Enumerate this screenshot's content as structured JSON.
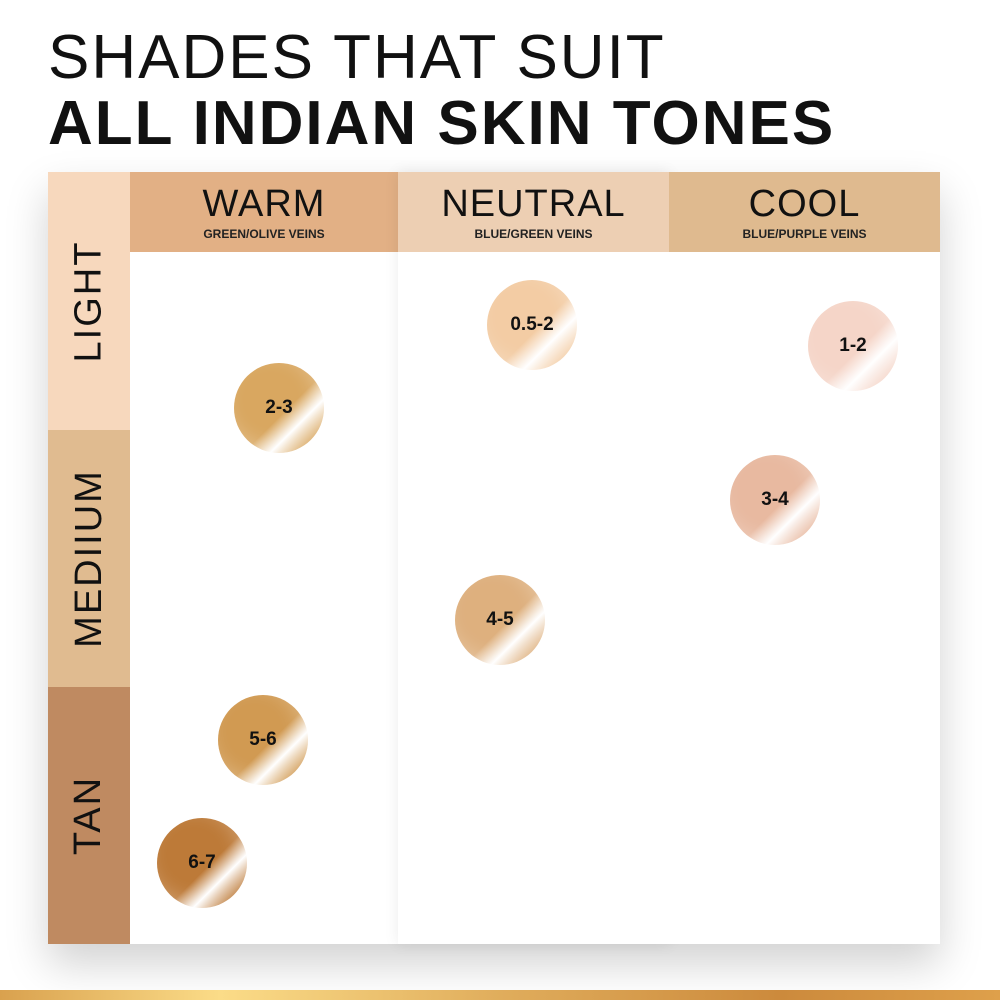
{
  "title": {
    "line1": "SHADES THAT SUIT",
    "line2": "ALL INDIAN SKIN TONES"
  },
  "columns": [
    {
      "name": "WARM",
      "sub": "GREEN/OLIVE VEINS",
      "color": "#e2b085"
    },
    {
      "name": "NEUTRAL",
      "sub": "BLUE/GREEN VEINS",
      "color": "#edcfb3"
    },
    {
      "name": "COOL",
      "sub": "BLUE/PURPLE VEINS",
      "color": "#dfba8f"
    }
  ],
  "rows": [
    {
      "name": "LIGHT",
      "color": "#f7d8bd"
    },
    {
      "name": "MEDIIUM",
      "color": "#e0bb90"
    },
    {
      "name": "TAN",
      "color": "#bf8a61"
    }
  ],
  "swatches": [
    {
      "label": "2-3",
      "column": "WARM",
      "color": "#d9a760"
    },
    {
      "label": "0.5-2",
      "column": "NEUTRAL",
      "color": "#f3cca4"
    },
    {
      "label": "1-2",
      "column": "COOL",
      "color": "#f5d5c8"
    },
    {
      "label": "3-4",
      "column": "COOL",
      "color": "#e8b9a0"
    },
    {
      "label": "4-5",
      "column": "NEUTRAL",
      "color": "#deb07e"
    },
    {
      "label": "5-6",
      "column": "WARM",
      "color": "#d19a52"
    },
    {
      "label": "6-7",
      "column": "WARM",
      "color": "#bd7a38"
    }
  ]
}
